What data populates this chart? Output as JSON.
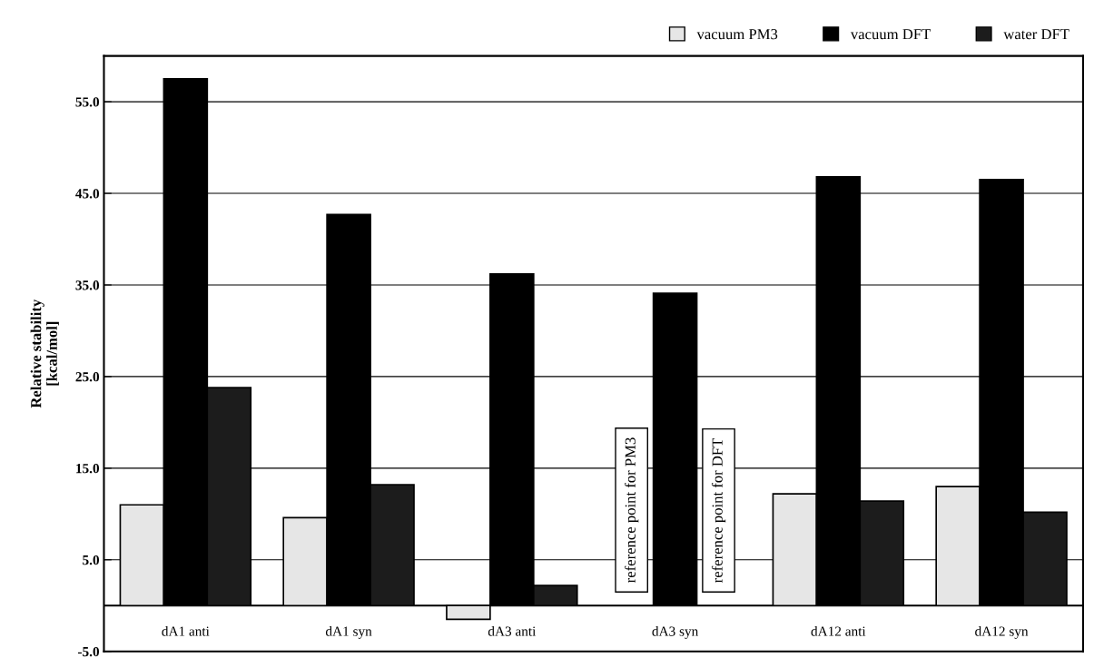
{
  "chart_data": {
    "type": "bar",
    "ylabel": "Relative stability\n[kcal/mol]",
    "categories": [
      "dA1 anti",
      "dA1 syn",
      "dA3 anti",
      "dA3 syn",
      "dA12 anti",
      "dA12 syn"
    ],
    "series": [
      {
        "name": "vacuum PM3",
        "color": "#e6e6e6",
        "values": [
          11.0,
          9.6,
          -1.5,
          null,
          12.2,
          13.0
        ]
      },
      {
        "name": "vacuum DFT",
        "color": "#000000",
        "values": [
          57.5,
          42.7,
          36.2,
          34.1,
          46.8,
          46.5
        ]
      },
      {
        "name": "water DFT",
        "color": "#1c1c1c",
        "values": [
          23.8,
          13.2,
          2.2,
          null,
          11.4,
          10.2
        ]
      }
    ],
    "ylim": [
      -5,
      60
    ],
    "yticks": [
      {
        "value": -5,
        "label": "-5.0"
      },
      {
        "value": 5,
        "label": "5.0"
      },
      {
        "value": 15,
        "label": "15.0"
      },
      {
        "value": 25,
        "label": "25.0"
      },
      {
        "value": 35,
        "label": "35.0"
      },
      {
        "value": 45,
        "label": "45.0"
      },
      {
        "value": 55,
        "label": "55.0"
      }
    ],
    "grid": "y",
    "legend": "top right",
    "ref_lines": [
      {
        "axis": "y",
        "value": 0,
        "color": "#000000"
      }
    ],
    "annotations": [
      {
        "text": "reference point for PM3",
        "x": "dA3 syn",
        "y": 0
      },
      {
        "text": "reference point for DFT",
        "x": "dA3 syn",
        "y": 0
      }
    ]
  }
}
